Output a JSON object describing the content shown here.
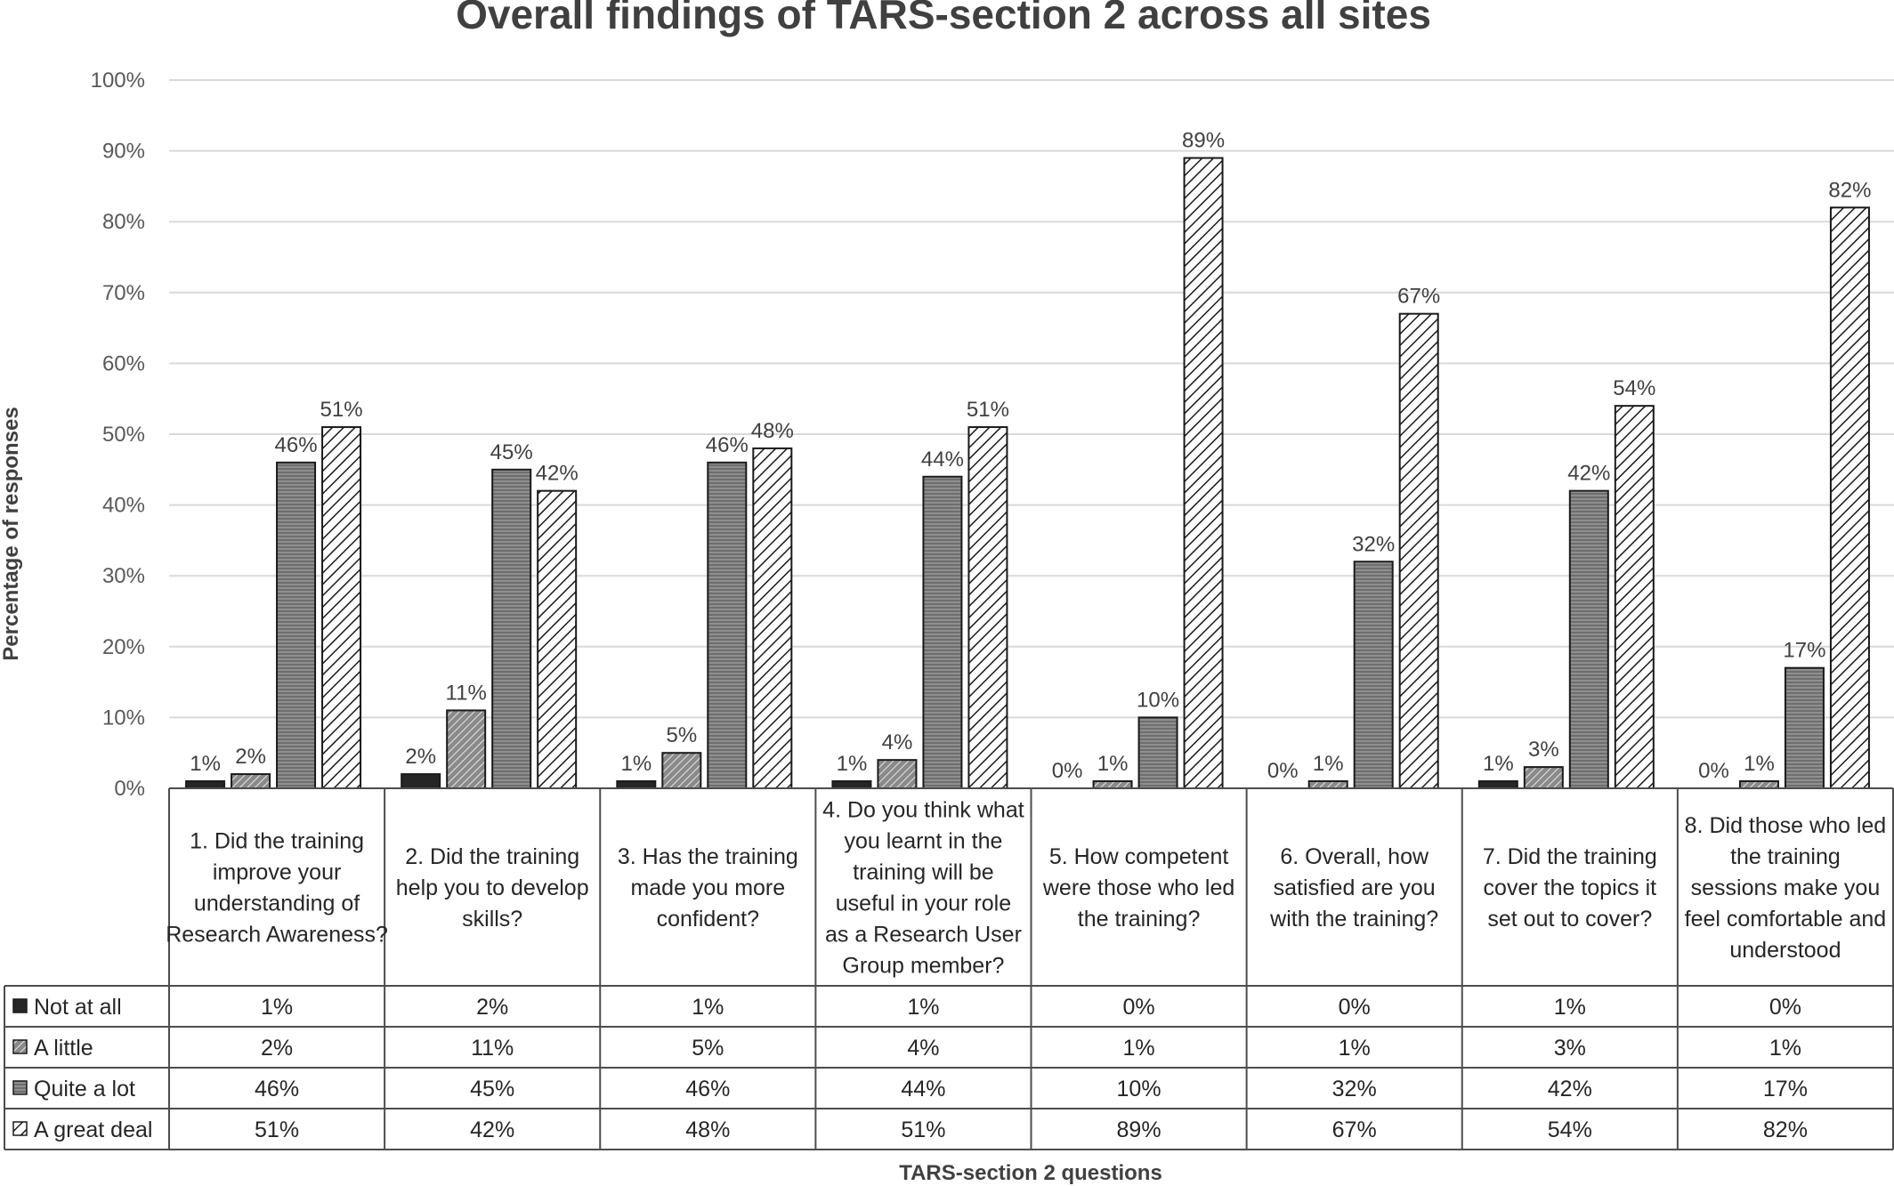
{
  "chart_data": {
    "type": "bar",
    "title": "Overall findings of TARS-section 2 across all sites",
    "xlabel": "TARS-section 2 questions",
    "ylabel": "Percentage of responses",
    "ylim": [
      0,
      100
    ],
    "yticks": [
      "0%",
      "10%",
      "20%",
      "30%",
      "40%",
      "50%",
      "60%",
      "70%",
      "80%",
      "90%",
      "100%"
    ],
    "grid": true,
    "legend": "left, in data table",
    "categories": [
      "1. Did the training improve your understanding of Research Awareness?",
      "2. Did the training help you to develop skills?",
      "3. Has the training made you more confident?",
      "4. Do you think what you learnt in the training will be useful in your role as a Research User Group member?",
      "5. How competent were those who led the training?",
      "6. Overall, how satisfied are you with the training?",
      "7. Did the training cover the topics it set out to cover?",
      "8. Did those who led the training sessions make you feel comfortable and understood"
    ],
    "series": [
      {
        "name": "Not at all",
        "values": [
          1,
          2,
          1,
          1,
          0,
          0,
          1,
          0
        ],
        "labels": [
          "1%",
          "2%",
          "1%",
          "1%",
          "0%",
          "0%",
          "1%",
          "0%"
        ]
      },
      {
        "name": "A little",
        "values": [
          2,
          11,
          5,
          4,
          1,
          1,
          3,
          1
        ],
        "labels": [
          "2%",
          "11%",
          "5%",
          "4%",
          "1%",
          "1%",
          "3%",
          "1%"
        ]
      },
      {
        "name": "Quite a lot",
        "values": [
          46,
          45,
          46,
          44,
          10,
          32,
          42,
          17
        ],
        "labels": [
          "46%",
          "45%",
          "46%",
          "44%",
          "10%",
          "32%",
          "42%",
          "17%"
        ]
      },
      {
        "name": "A great deal",
        "values": [
          51,
          42,
          48,
          51,
          89,
          67,
          54,
          82
        ],
        "labels": [
          "51%",
          "42%",
          "48%",
          "51%",
          "89%",
          "67%",
          "54%",
          "82%"
        ]
      }
    ]
  }
}
